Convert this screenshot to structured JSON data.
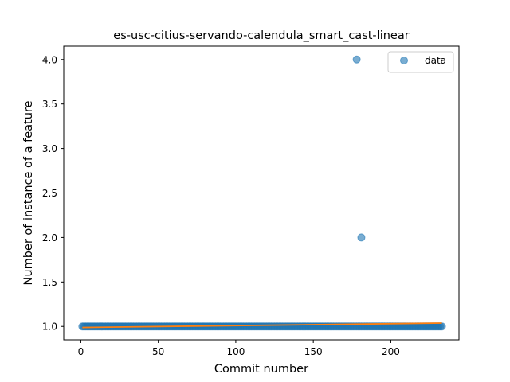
{
  "chart_data": {
    "type": "scatter",
    "title": "es-usc-citius-servando-calendula_smart_cast-linear",
    "xlabel": "Commit number",
    "ylabel": "Number of instance of a feature",
    "xlim": [
      -11,
      244
    ],
    "ylim": [
      0.85,
      4.15
    ],
    "x_ticks": [
      0,
      50,
      100,
      150,
      200
    ],
    "y_ticks": [
      1.0,
      1.5,
      2.0,
      2.5,
      3.0,
      3.5,
      4.0
    ],
    "x_tick_labels": [
      "0",
      "50",
      "100",
      "150",
      "200"
    ],
    "y_tick_labels": [
      "1.0",
      "1.5",
      "2.0",
      "2.5",
      "3.0",
      "3.5",
      "4.0"
    ],
    "grid": false,
    "legend": {
      "placement": "top-right",
      "entries": [
        "data"
      ]
    },
    "series": [
      {
        "name": "data",
        "kind": "scatter",
        "color": "#1f77b4",
        "baseline": {
          "x_start": 1,
          "x_end": 233,
          "y": 1
        },
        "outliers": [
          {
            "x": 178,
            "y": 4
          },
          {
            "x": 181,
            "y": 2
          }
        ]
      },
      {
        "kind": "line",
        "color": "#ff7f0e",
        "points": [
          {
            "x": 1,
            "y": 0.988
          },
          {
            "x": 233,
            "y": 1.038
          }
        ]
      }
    ]
  }
}
